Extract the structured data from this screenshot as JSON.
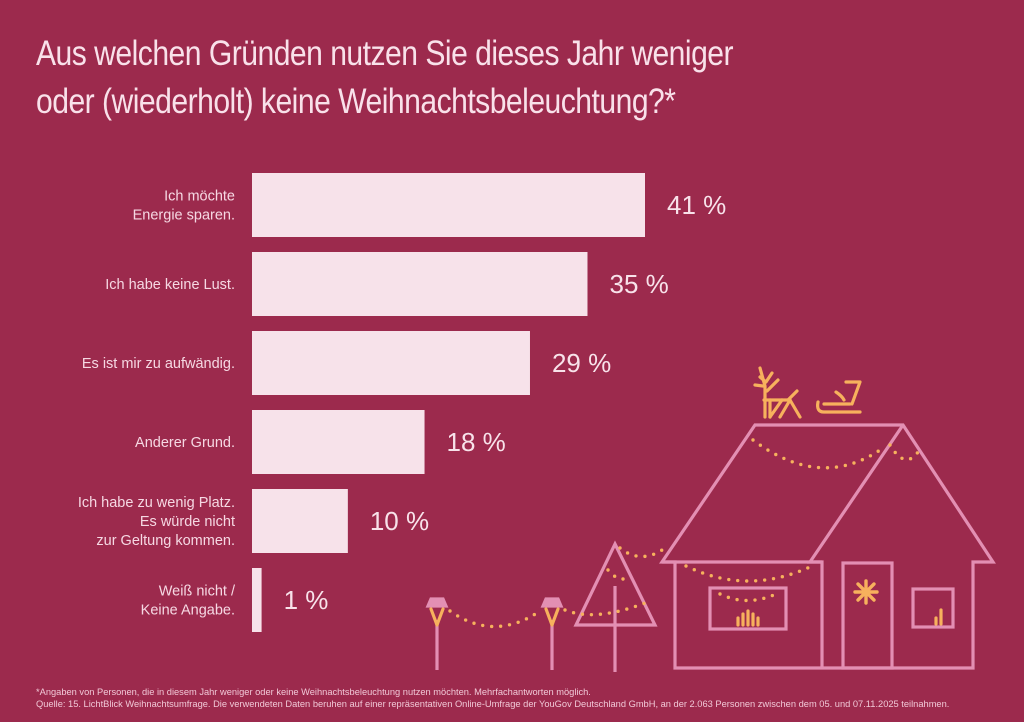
{
  "title": {
    "line1": "Aus welchen Gründen nutzen Sie dieses Jahr weniger",
    "line2": "oder (wiederholt) keine Weihnachtsbeleuchtung?*"
  },
  "chart_data": {
    "type": "bar",
    "orientation": "horizontal",
    "title": "Aus welchen Gründen nutzen Sie dieses Jahr weniger oder (wiederholt) keine Weihnachtsbeleuchtung?*",
    "xlabel": "",
    "ylabel": "",
    "unit": "%",
    "grid": false,
    "categories": [
      [
        "Ich möchte",
        "Energie sparen."
      ],
      [
        "Ich habe keine Lust."
      ],
      [
        "Es ist mir zu aufwändig."
      ],
      [
        "Anderer Grund."
      ],
      [
        "Ich habe zu wenig Platz.",
        "Es würde nicht",
        "zur Geltung kommen."
      ],
      [
        "Weiß nicht /",
        "Keine Angabe."
      ]
    ],
    "values": [
      41,
      35,
      29,
      18,
      10,
      1
    ],
    "value_labels": [
      "41 %",
      "35 %",
      "29 %",
      "18 %",
      "10 %",
      "1 %"
    ],
    "xlim": [
      0,
      41
    ]
  },
  "colors": {
    "background": "#9c2a4d",
    "bar": "#f7e2ea",
    "text": "#f8e2ea",
    "illustration_outline": "#e38fb3",
    "illustration_lights": "#f7b15d"
  },
  "illustration": {
    "description": "house with christmas lights, reindeer and sleigh on roof, tree and lamp posts",
    "icons": [
      "reindeer-icon",
      "sleigh-icon",
      "house-icon",
      "door-star-icon",
      "tree-icon",
      "lamp-post-icon"
    ]
  },
  "footnote": {
    "line1": "*Angaben von Personen, die in diesem Jahr weniger oder keine Weihnachtsbeleuchtung nutzen möchten. Mehrfachantworten möglich.",
    "line2": "Quelle: 15. LichtBlick Weihnachtsumfrage. Die verwendeten Daten beruhen auf einer repräsentativen Online-Umfrage der YouGov Deutschland GmbH, an der 2.063 Personen zwischen dem 05. und 07.11.2025 teilnahmen."
  }
}
